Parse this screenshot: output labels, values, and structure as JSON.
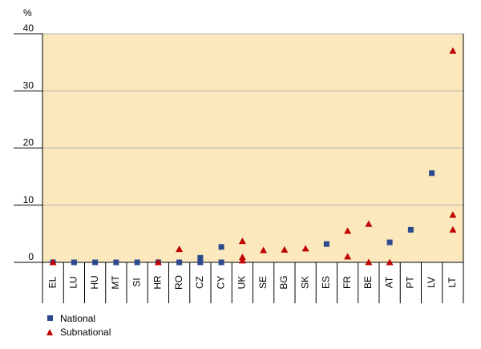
{
  "chart_data": {
    "type": "scatter",
    "unit_label": "%",
    "ylim": [
      0,
      40
    ],
    "yticks": [
      0,
      10,
      20,
      30,
      40
    ],
    "categories": [
      "EL",
      "LU",
      "HU",
      "MT",
      "SI",
      "HR",
      "RO",
      "CZ",
      "CY",
      "UK",
      "SE",
      "BG",
      "SK",
      "ES",
      "FR",
      "BE",
      "AT",
      "PT",
      "LV",
      "LT"
    ],
    "legend_placement": "bottom-left",
    "colors": {
      "plot_bg": "#fbe9bd",
      "national": "#2e4a8e",
      "subnational": "#c00000",
      "grid": "#b0b0b0"
    },
    "series": [
      {
        "name": "National",
        "marker": "square",
        "points": [
          {
            "x": "EL",
            "y": 0.0
          },
          {
            "x": "LU",
            "y": 0.0
          },
          {
            "x": "HU",
            "y": 0.0
          },
          {
            "x": "MT",
            "y": 0.0
          },
          {
            "x": "SI",
            "y": 0.0
          },
          {
            "x": "HR",
            "y": 0.0
          },
          {
            "x": "RO",
            "y": 0.0
          },
          {
            "x": "CZ",
            "y": 0.8
          },
          {
            "x": "CZ",
            "y": 0.0
          },
          {
            "x": "CY",
            "y": 2.7
          },
          {
            "x": "CY",
            "y": 0.0
          },
          {
            "x": "ES",
            "y": 3.2
          },
          {
            "x": "AT",
            "y": 3.5
          },
          {
            "x": "PT",
            "y": 5.7
          },
          {
            "x": "LV",
            "y": 15.6
          }
        ]
      },
      {
        "name": "Subnational",
        "marker": "triangle",
        "points": [
          {
            "x": "EL",
            "y": 0.0
          },
          {
            "x": "HR",
            "y": 0.0
          },
          {
            "x": "RO",
            "y": 2.3
          },
          {
            "x": "UK",
            "y": 3.7
          },
          {
            "x": "UK",
            "y": 0.9
          },
          {
            "x": "UK",
            "y": 0.3
          },
          {
            "x": "SE",
            "y": 2.1
          },
          {
            "x": "BG",
            "y": 2.2
          },
          {
            "x": "SK",
            "y": 2.4
          },
          {
            "x": "FR",
            "y": 5.5
          },
          {
            "x": "FR",
            "y": 1.0
          },
          {
            "x": "BE",
            "y": 6.7
          },
          {
            "x": "BE",
            "y": 0.0
          },
          {
            "x": "AT",
            "y": 0.0
          },
          {
            "x": "LT",
            "y": 37.0
          },
          {
            "x": "LT",
            "y": 8.3
          },
          {
            "x": "LT",
            "y": 5.7
          }
        ]
      }
    ]
  }
}
